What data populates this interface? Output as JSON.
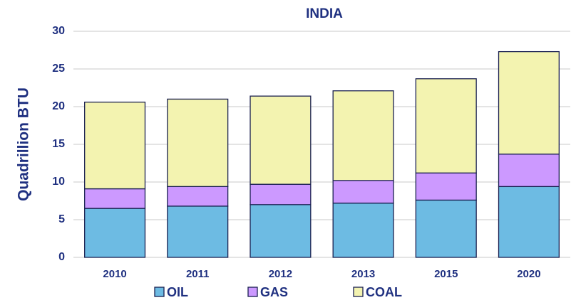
{
  "chart_data": {
    "type": "stacked_bar",
    "title": "INDIA",
    "y_label": "Quadrillion BTU",
    "categories": [
      "2010",
      "2011",
      "2012",
      "2013",
      "2015",
      "2020"
    ],
    "series": [
      {
        "name": "OIL",
        "color": "#6dbbe3",
        "values": [
          6.5,
          6.8,
          7.0,
          7.2,
          7.6,
          9.4
        ]
      },
      {
        "name": "GAS",
        "color": "#cc99ff",
        "values": [
          2.6,
          2.6,
          2.7,
          3.0,
          3.6,
          4.3
        ]
      },
      {
        "name": "COAL",
        "color": "#f3f3b0",
        "values": [
          11.5,
          11.6,
          11.7,
          11.9,
          12.5,
          13.6
        ]
      }
    ],
    "ylim": [
      0,
      30
    ],
    "yticks": [
      0,
      5,
      10,
      15,
      20,
      25,
      30
    ],
    "grid": true,
    "legend": "bottom"
  }
}
